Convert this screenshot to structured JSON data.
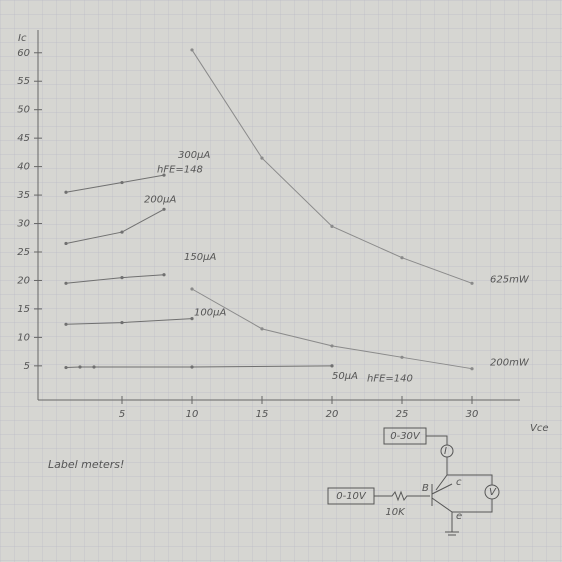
{
  "chart_data": {
    "type": "line",
    "x_label": "Vce",
    "y_label": "Ic",
    "xlim": [
      -1,
      33
    ],
    "ylim": [
      -1,
      64
    ],
    "xticks": [
      5,
      10,
      15,
      20,
      25,
      30
    ],
    "yticks": [
      5,
      10,
      15,
      20,
      25,
      30,
      35,
      40,
      45,
      50,
      55,
      60
    ],
    "grid": true,
    "series": [
      {
        "name": "300µA",
        "color": "#707070",
        "x": [
          1,
          5,
          8
        ],
        "values": [
          35.5,
          37.2,
          38.5
        ]
      },
      {
        "name": "200µA",
        "color": "#707070",
        "x": [
          1,
          5,
          8
        ],
        "values": [
          26.5,
          28.5,
          32.5
        ]
      },
      {
        "name": "150µA",
        "color": "#707070",
        "x": [
          1,
          5,
          8
        ],
        "values": [
          19.5,
          20.5,
          21
        ]
      },
      {
        "name": "100µA",
        "color": "#707070",
        "x": [
          1,
          5,
          10
        ],
        "values": [
          12.3,
          12.6,
          13.3
        ]
      },
      {
        "name": "50µA",
        "color": "#707070",
        "x": [
          1,
          2,
          3,
          10,
          20
        ],
        "values": [
          4.7,
          4.8,
          4.8,
          4.8,
          5
        ]
      },
      {
        "name": "625mW",
        "color": "#8a8a8a",
        "x": [
          10,
          15,
          20,
          25,
          30
        ],
        "values": [
          60.5,
          41.5,
          29.5,
          24,
          19.5
        ]
      },
      {
        "name": "200mW",
        "color": "#8a8a8a",
        "x": [
          10,
          15,
          20,
          25,
          30
        ],
        "values": [
          18.5,
          11.5,
          8.5,
          6.5,
          4.5
        ]
      }
    ],
    "annotations": [
      "hFE=148",
      "hFE=140",
      "Label meters!"
    ]
  },
  "circuit": {
    "labels": [
      "0-30V",
      "0-10V",
      "10K",
      "B",
      "c",
      "e",
      "I",
      "V"
    ]
  }
}
